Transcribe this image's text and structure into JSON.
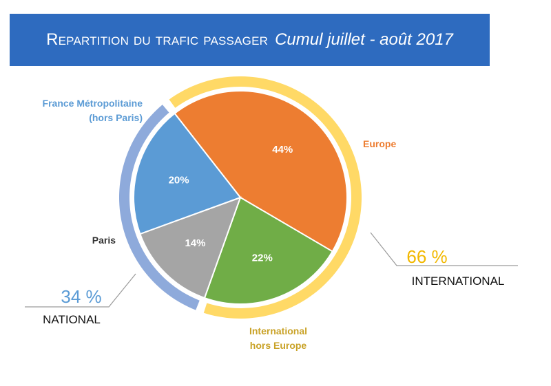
{
  "title": {
    "main": "Repartition du trafic passager",
    "sub": "Cumul  juillet - août 2017"
  },
  "chart_data": {
    "type": "pie",
    "title": "Repartition du trafic passager Cumul juillet - août 2017",
    "categories": [
      {
        "name": "Europe",
        "lines": [
          "Europe"
        ],
        "value": 44,
        "label": "44%",
        "color": "#ed7d31",
        "label_color": "#ed7d31"
      },
      {
        "name": "International hors Europe",
        "lines": [
          "International",
          "hors Europe"
        ],
        "value": 22,
        "label": "22%",
        "color": "#70ad47",
        "label_color": "#c9a227"
      },
      {
        "name": "Paris",
        "lines": [
          "Paris"
        ],
        "value": 14,
        "label": "14%",
        "color": "#a5a5a5",
        "label_color": "#333333"
      },
      {
        "name": "France Métropolitaine (hors Paris)",
        "lines": [
          "France Métropolitaine",
          "(hors Paris)"
        ],
        "value": 20,
        "label": "20%",
        "color": "#5b9bd5",
        "label_color": "#5b9bd5"
      }
    ],
    "groups": [
      {
        "name": "INTERNATIONAL",
        "value": "66 %",
        "members": [
          "Europe",
          "International hors Europe"
        ],
        "color": "#ffd966",
        "pct_color": "#f2b800"
      },
      {
        "name": "NATIONAL",
        "value": "34 %",
        "members": [
          "Paris",
          "France Métropolitaine (hors Paris)"
        ],
        "color": "#8eaadb",
        "pct_color": "#5b9bd5"
      }
    ]
  }
}
